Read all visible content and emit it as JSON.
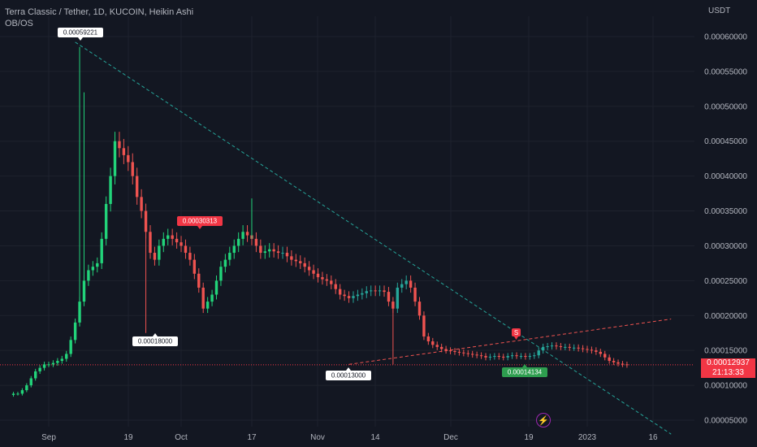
{
  "legend": {
    "symbol_line": "Terra Classic / Tether, 1D, KUCOIN, Heikin Ashi",
    "indicator": "OB/OS"
  },
  "axis": {
    "currency": "USDT",
    "y_ticks": [
      "0.00060000",
      "0.00055000",
      "0.00050000",
      "0.00045000",
      "0.00040000",
      "0.00035000",
      "0.00030000",
      "0.00025000",
      "0.00020000",
      "0.00015000",
      "0.00010000",
      "0.00005000"
    ],
    "x_ticks": [
      "Sep",
      "19",
      "Oct",
      "17",
      "Nov",
      "14",
      "Dec",
      "19",
      "2023",
      "16"
    ]
  },
  "last_price": {
    "value": "0.00012937",
    "countdown": "21:13:33"
  },
  "callouts": {
    "high": "0.00059221",
    "sep_low": "0.00018000",
    "oct_sell": "0.00030313",
    "nov_low": "0.00013000",
    "dec_buy": "0.00014134",
    "dec_sell_marker": "S"
  },
  "colors": {
    "up": "#26a69a",
    "up_bright": "#22d47a",
    "down": "#ef5350",
    "background": "#131722",
    "last_price": "#f23645",
    "trend_down": "#26a69a",
    "trend_up": "#ef5350"
  },
  "icons": {
    "replay": "lightning-bolt-icon"
  },
  "chart_data": {
    "type": "candlestick",
    "title": "Terra Classic / Tether, 1D, KUCOIN, Heikin Ashi",
    "ylim": [
      2e-05,
      0.00064
    ],
    "x_range": [
      "2022-08-24",
      "2023-01-20"
    ],
    "candles_close": [
      8.8e-05,
      8.8e-05,
      9.3e-05,
      0.0001,
      0.00011,
      0.00012,
      0.000125,
      0.00013,
      0.00013,
      0.000132,
      0.000135,
      0.000138,
      0.000145,
      0.000165,
      0.00019,
      0.00022,
      0.00025,
      0.000265,
      0.00027,
      0.000275,
      0.00031,
      0.00036,
      0.0004,
      0.00045,
      0.00044,
      0.00043,
      0.00042,
      0.0004,
      0.00037,
      0.00035,
      0.00032,
      0.00029,
      0.00028,
      0.0003,
      0.00031,
      0.000315,
      0.00031,
      0.000305,
      0.0003,
      0.00029,
      0.00028,
      0.00026,
      0.00024,
      0.00021,
      0.00022,
      0.00023,
      0.00025,
      0.00027,
      0.00028,
      0.00029,
      0.0003,
      0.00031,
      0.00032,
      0.000315,
      0.00031,
      0.0003,
      0.00029,
      0.000292,
      0.000295,
      0.000292,
      0.00029,
      0.00029,
      0.000285,
      0.00028,
      0.000278,
      0.000275,
      0.00027,
      0.000265,
      0.00026,
      0.000255,
      0.000252,
      0.00025,
      0.000245,
      0.000238,
      0.00023,
      0.000228,
      0.000225,
      0.000228,
      0.00023,
      0.000232,
      0.000235,
      0.000236,
      0.000235,
      0.000236,
      0.000234,
      0.00022,
      0.00021,
      0.00024,
      0.000245,
      0.00025,
      0.00024,
      0.00022,
      0.0002,
      0.00017,
      0.000163,
      0.000158,
      0.000155,
      0.000152,
      0.00015,
      0.000149,
      0.000148,
      0.000147,
      0.000146,
      0.000145,
      0.000144,
      0.000143,
      0.000142,
      0.00014,
      0.000141,
      0.000142,
      0.000141,
      0.00014,
      0.000142,
      0.000143,
      0.000142,
      0.000142,
      0.000141,
      0.000142,
      0.000143,
      0.00015,
      0.000155,
      0.000156,
      0.000157,
      0.000156,
      0.000155,
      0.000155,
      0.000154,
      0.000154,
      0.000153,
      0.000152,
      0.000151,
      0.00015,
      0.000148,
      0.000145,
      0.00014,
      0.000135,
      0.000133,
      0.000131,
      0.00013,
      0.000129
    ],
    "trendlines": [
      {
        "name": "",
        "from": [
          "2022-09-07",
          0.000592
        ],
        "to": [
          "2023-01-20",
          3e-05
        ]
      },
      {
        "name": "",
        "from": [
          "2022-11-08",
          0.00013
        ],
        "to": [
          "2023-01-20",
          0.000195
        ]
      }
    ],
    "last_price_line": 0.00012937
  }
}
